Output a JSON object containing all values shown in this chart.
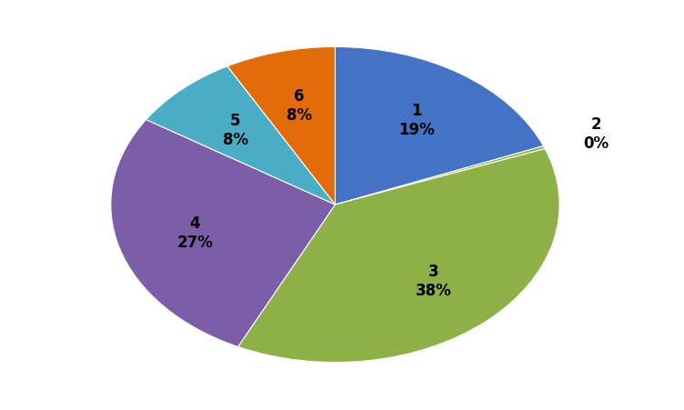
{
  "labels_inner": [
    "1\n19%",
    "",
    "3\n38%",
    "4\n27%",
    "5\n8%",
    "6\n8%"
  ],
  "label_2": "2\n0%",
  "values": [
    19,
    0.3,
    38,
    27,
    8,
    8
  ],
  "colors": [
    "#4472C4",
    "#8DB048",
    "#8DB048",
    "#7B5EA7",
    "#4BACC6",
    "#E36C0A"
  ],
  "startangle": 90,
  "label_fontsize": 12,
  "background_color": "#ffffff"
}
